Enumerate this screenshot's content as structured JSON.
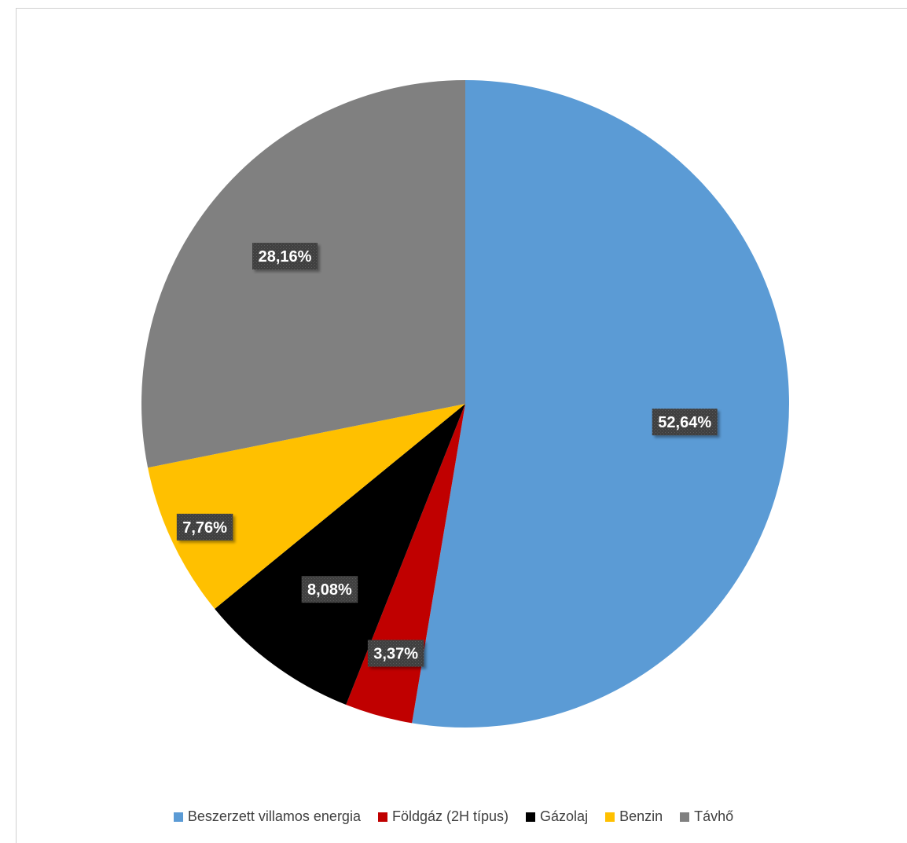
{
  "chart_data": {
    "type": "pie",
    "title": "",
    "categories": [
      "Beszerzett villamos energia",
      "Földgáz (2H típus)",
      "Gázolaj",
      "Benzin",
      "Távhő"
    ],
    "values": [
      52.64,
      3.37,
      8.08,
      7.76,
      28.16
    ],
    "data_labels": [
      "52,64%",
      "3,37%",
      "8,08%",
      "7,76%",
      "28,16%"
    ],
    "colors": [
      "#5b9bd5",
      "#c00000",
      "#000000",
      "#ffc000",
      "#808080"
    ],
    "legend_position": "bottom",
    "start_angle": "12 o'clock",
    "direction": "clockwise"
  }
}
